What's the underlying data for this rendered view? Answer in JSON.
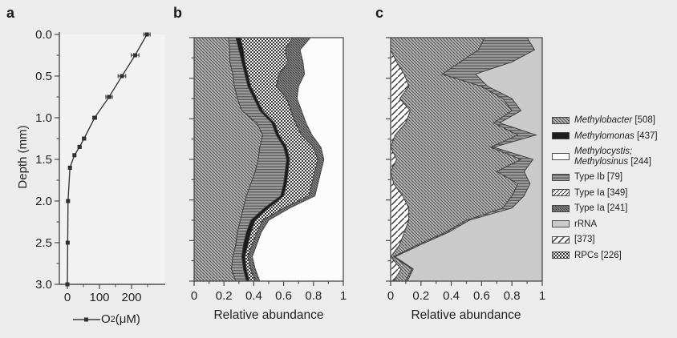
{
  "figure": {
    "bg": "#ececec",
    "panel_letters": {
      "a": "a",
      "b": "b",
      "c": "c"
    }
  },
  "colors": {
    "axis": "#4a4a4a",
    "text": "#1f1f1f",
    "line": "#3a3a3a",
    "marker": "#2f2f2f",
    "panel_a_bg": "#f2f2f2",
    "panel_box_bg": "#fcfcfc"
  },
  "panel_a_legend": {
    "pre": "O",
    "sub": "2",
    "post": " (μM)"
  },
  "chart_data": [
    {
      "id": "a",
      "type": "line",
      "title": "",
      "xlabel": "O2 (μM)",
      "ylabel": "Depth (mm)",
      "xlim": [
        0,
        250
      ],
      "ylim": [
        0,
        3
      ],
      "x_ticks": {
        "values": [
          0,
          100,
          200
        ],
        "labels": [
          "0",
          "100",
          "200"
        ],
        "minor": [
          50,
          150,
          250
        ]
      },
      "y_ticks": {
        "values": [
          0,
          0.5,
          1,
          1.5,
          2,
          2.5,
          3
        ],
        "labels": [
          "0.0",
          "0.5",
          "1.0",
          "1.5",
          "2.0",
          "2.5",
          "3.0"
        ],
        "minor": [
          0.25,
          0.75,
          1.25,
          1.75,
          2.25,
          2.75
        ]
      },
      "series_name": "O2 (μM)",
      "depth_mm": [
        0,
        0.25,
        0.5,
        0.75,
        1.0,
        1.25,
        1.35,
        1.45,
        1.6,
        2.0,
        2.5,
        3.0
      ],
      "o2_um": [
        248,
        211,
        170,
        130,
        85,
        52,
        38,
        22,
        8,
        2,
        1,
        0
      ],
      "o2_err": [
        10,
        12,
        12,
        10,
        6,
        5,
        5,
        4,
        3,
        2,
        2,
        2
      ]
    },
    {
      "id": "b",
      "type": "area",
      "xlabel": "Relative abundance",
      "xlim": [
        0,
        1
      ],
      "ylim_depth_mm": [
        0,
        3
      ],
      "x_ticks": {
        "values": [
          0,
          0.2,
          0.4,
          0.6,
          0.8,
          1
        ],
        "labels": [
          "0",
          "0.2",
          "0.4",
          "0.6",
          "0.8",
          "1"
        ],
        "minor": [
          0.1,
          0.3,
          0.5,
          0.7,
          0.9
        ]
      },
      "rows": [
        0,
        0.05,
        0.1,
        0.15,
        0.2,
        0.25,
        0.3,
        0.35,
        0.4,
        0.45,
        0.5,
        0.55,
        0.6,
        0.65,
        0.7,
        0.75,
        0.8,
        0.85,
        0.9,
        0.95,
        1
      ],
      "series": [
        {
          "name": "Methylobacter [508]",
          "pattern": "methylobacter",
          "cum": [
            0.23,
            0.24,
            0.24,
            0.26,
            0.27,
            0.29,
            0.32,
            0.42,
            0.46,
            0.44,
            0.43,
            0.41,
            0.38,
            0.35,
            0.33,
            0.31,
            0.29,
            0.28,
            0.26,
            0.25,
            0.28
          ]
        },
        {
          "name": "Type Ib [79]",
          "pattern": "type_ib",
          "cum": [
            0.28,
            0.3,
            0.32,
            0.34,
            0.36,
            0.4,
            0.44,
            0.52,
            0.55,
            0.6,
            0.62,
            0.61,
            0.6,
            0.58,
            0.47,
            0.38,
            0.35,
            0.33,
            0.32,
            0.33,
            0.35
          ]
        },
        {
          "name": "Methylomonas [437]",
          "pattern": "methylomonas",
          "cum": [
            0.31,
            0.33,
            0.34,
            0.36,
            0.38,
            0.42,
            0.46,
            0.54,
            0.57,
            0.62,
            0.64,
            0.63,
            0.62,
            0.6,
            0.5,
            0.41,
            0.38,
            0.36,
            0.34,
            0.35,
            0.37
          ]
        },
        {
          "name": "RPCs [226]",
          "pattern": "rpcs",
          "cum": [
            0.66,
            0.61,
            0.63,
            0.57,
            0.55,
            0.62,
            0.65,
            0.68,
            0.72,
            0.8,
            0.83,
            0.81,
            0.79,
            0.77,
            0.6,
            0.46,
            0.42,
            0.39,
            0.36,
            0.38,
            0.41
          ]
        },
        {
          "name": "Type Ia [241]",
          "pattern": "type_ia_241",
          "cum": [
            0.78,
            0.71,
            0.73,
            0.74,
            0.7,
            0.69,
            0.72,
            0.75,
            0.79,
            0.85,
            0.87,
            0.85,
            0.83,
            0.81,
            0.64,
            0.5,
            0.45,
            0.42,
            0.39,
            0.41,
            0.44
          ]
        }
      ]
    },
    {
      "id": "c",
      "type": "area",
      "xlabel": "Relative abundance",
      "xlim": [
        0,
        1
      ],
      "ylim_depth_mm": [
        0,
        3
      ],
      "x_ticks": {
        "values": [
          0,
          0.2,
          0.4,
          0.6,
          0.8,
          1
        ],
        "labels": [
          "0",
          "0.2",
          "0.4",
          "0.6",
          "0.8",
          "1"
        ],
        "minor": [
          0.1,
          0.3,
          0.5,
          0.7,
          0.9
        ]
      },
      "rows": [
        0,
        0.05,
        0.1,
        0.15,
        0.2,
        0.25,
        0.3,
        0.35,
        0.4,
        0.45,
        0.5,
        0.55,
        0.6,
        0.65,
        0.7,
        0.75,
        0.8,
        0.85,
        0.9,
        0.95,
        1
      ],
      "series": [
        {
          "name": "[373]",
          "pattern": "m373",
          "cum": [
            0,
            0,
            0.04,
            0.09,
            0.12,
            0.06,
            0.13,
            0.1,
            0.03,
            0,
            0.04,
            0,
            0.02,
            0.08,
            0.12,
            0.12,
            0.09,
            0.06,
            0,
            0.07,
            0.02
          ]
        },
        {
          "name": "Methylobacter [508]",
          "pattern": "methylobacter",
          "cum": [
            0.62,
            0.58,
            0.46,
            0.34,
            0.6,
            0.74,
            0.8,
            0.68,
            0.84,
            0.66,
            0.86,
            0.7,
            0.84,
            0.8,
            0.74,
            0.5,
            0.36,
            0.18,
            0.02,
            0.14,
            0.1
          ]
        },
        {
          "name": "Type Ib [79]",
          "pattern": "type_ib",
          "cum": [
            0.9,
            0.95,
            0.8,
            0.56,
            0.64,
            0.8,
            0.86,
            0.72,
            0.96,
            0.68,
            0.94,
            0.88,
            0.92,
            0.88,
            0.8,
            0.52,
            0.38,
            0.2,
            0.03,
            0.15,
            0.11
          ]
        },
        {
          "name": "rRNA",
          "pattern": "rrna",
          "cum": [
            1,
            1,
            1,
            1,
            1,
            1,
            1,
            1,
            1,
            1,
            1,
            1,
            1,
            1,
            1,
            1,
            1,
            1,
            1,
            1,
            1
          ]
        }
      ]
    }
  ],
  "legend": {
    "items": [
      {
        "key": "methylobacter",
        "pattern": "methylobacter",
        "lines": [
          [
            {
              "t": "Methylobacter",
              "i": true
            },
            {
              "t": " [508]",
              "i": false
            }
          ]
        ]
      },
      {
        "key": "methylomonas",
        "pattern": "methylomonas",
        "lines": [
          [
            {
              "t": "Methylomonas",
              "i": true
            },
            {
              "t": " [437]",
              "i": false
            }
          ]
        ]
      },
      {
        "key": "methylocystis-methylosinus",
        "pattern": "methylocystis",
        "lines": [
          [
            {
              "t": "Methylocystis;",
              "i": true
            }
          ],
          [
            {
              "t": "Methylosinus",
              "i": true
            },
            {
              "t": " [244]",
              "i": false
            }
          ]
        ]
      },
      {
        "key": "type-ib-79",
        "pattern": "type_ib",
        "lines": [
          [
            {
              "t": "Type Ib [79]",
              "i": false
            }
          ]
        ]
      },
      {
        "key": "type-ia-349",
        "pattern": "type_ia_349",
        "lines": [
          [
            {
              "t": "Type Ia [349]",
              "i": false
            }
          ]
        ]
      },
      {
        "key": "type-ia-241",
        "pattern": "type_ia_241",
        "lines": [
          [
            {
              "t": "Type Ia [241]",
              "i": false
            }
          ]
        ]
      },
      {
        "key": "rrna",
        "pattern": "rrna",
        "lines": [
          [
            {
              "t": "rRNA",
              "i": false
            }
          ]
        ]
      },
      {
        "key": "373",
        "pattern": "m373",
        "lines": [
          [
            {
              "t": "[373]",
              "i": false
            }
          ]
        ]
      },
      {
        "key": "rpcs-226",
        "pattern": "rpcs",
        "lines": [
          [
            {
              "t": "RPCs [226]",
              "i": false
            }
          ]
        ]
      }
    ]
  },
  "patterns": {
    "methylobacter": {
      "kind": "diag_back",
      "bg": "#b5b5b5",
      "fg": "#4c4c4c",
      "size": 4,
      "w": 1.1
    },
    "methylomonas": {
      "kind": "solid",
      "bg": "#1c1c1c"
    },
    "methylocystis": {
      "kind": "solid",
      "bg": "#fbfbfb"
    },
    "type_ib": {
      "kind": "horiz",
      "bg": "#9c9c9c",
      "fg": "#545454",
      "size": 3.5,
      "w": 1.2
    },
    "type_ia_349": {
      "kind": "diag_fwd",
      "bg": "#f8f8f8",
      "fg": "#3c3c3c",
      "size": 5,
      "w": 1.1
    },
    "type_ia_241": {
      "kind": "diag_back",
      "bg": "#8f8f8f",
      "fg": "#2f2f2f",
      "size": 3.2,
      "w": 1.0
    },
    "rrna": {
      "kind": "solid",
      "bg": "#cacaca"
    },
    "m373": {
      "kind": "diag_fwd",
      "bg": "#fcfcfc",
      "fg": "#3c3c3c",
      "size": 8,
      "w": 1.5
    },
    "rpcs": {
      "kind": "checker",
      "bg": "#f0f0f0",
      "fg": "#3b3b3b",
      "size": 4
    }
  }
}
